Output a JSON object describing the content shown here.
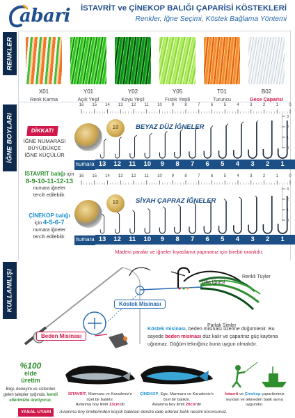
{
  "brand": {
    "logo_text": "abari"
  },
  "header": {
    "title": "İSTAVRİT ve ÇİNEKOP BALIĞI ÇAPARİSİ KÖSTEKLERİ",
    "subtitle": "Renkler, İğne Seçimi, Köstek Bağlama Yöntemi"
  },
  "sections": {
    "colors": "RENKLER",
    "hooks": "İĞNE BOYLARI",
    "usage": "KULLANILIŞI"
  },
  "colors": [
    {
      "code": "X01",
      "name": "Renk Karma",
      "highlight": false
    },
    {
      "code": "Y01",
      "name": "Açık Yeşil",
      "highlight": false
    },
    {
      "code": "Y02",
      "name": "Koyu Yeşil",
      "highlight": false
    },
    {
      "code": "Y05",
      "name": "Fıstık Yeşili",
      "highlight": false
    },
    {
      "code": "T01",
      "name": "Turuncu",
      "highlight": false
    },
    {
      "code": "B02",
      "name": "Gece Çaparisi",
      "highlight": true
    }
  ],
  "hooks": {
    "ruler_top": [
      "16",
      "15",
      "14",
      "13",
      "12",
      "11",
      "10",
      "9",
      "8",
      "7",
      "6",
      "5",
      "4",
      "3",
      "2",
      "1",
      "0"
    ],
    "ruler_bottom": [
      "16",
      "15",
      "14",
      "13",
      "12",
      "11",
      "10",
      "9",
      "8",
      "7",
      "6",
      "5",
      "4",
      "3",
      "2",
      "1",
      "0"
    ],
    "side_scale": [
      "3",
      "2",
      "1",
      "0"
    ],
    "white_title": "BEYAZ DÜZ İĞNELER",
    "silver_title": "SİYAH ÇAPRAZ İĞNELER",
    "number_label": "numara",
    "numbers_top": [
      "13",
      "12",
      "11",
      "10",
      "9",
      "8",
      "7",
      "6",
      "5",
      "4",
      "3",
      "2",
      "1"
    ],
    "numbers_bottom": [
      "13",
      "12",
      "11",
      "10",
      "9",
      "8",
      "7",
      "6",
      "5",
      "4",
      "3",
      "2",
      "1"
    ],
    "dikkat": "DİKKAT!",
    "warning_l1": "İĞNE NUMARASI",
    "warning_l2": "BÜYÜDÜKÇE",
    "warning_l3": "İĞNE KÜÇÜLÜR",
    "istavrit_l1a": "İSTAVRİT balığı",
    "istavrit_l1b": " için",
    "istavrit_nums": "8-9-10-11-12-13",
    "istavrit_l3": "numara iğneler",
    "istavrit_l4": "tercih edilebilir.",
    "cinekop_l1a": "ÇİNEKOP balığı",
    "cinekop_l2a": "için ",
    "cinekop_nums": "4-5-6-7",
    "cinekop_l3": "numara iğneler",
    "cinekop_l4": "tercih edilebilir.",
    "coin_label": "10",
    "footnote": "Madeni paralar ve iğneler kıyaslama yapmanız için birebir oranlıdır."
  },
  "usage": {
    "hook_label": "Olta İğnesi",
    "feather_label": "Renkli Tüyler",
    "beads_label": "Parlak Simler",
    "kostek_label": "Köstek Misinası",
    "beden_label": "Beden Misinası",
    "desc_a": "Köstek misinası",
    "desc_b": ", beden misinası üzerine düğümlenir. Bu",
    "desc_c": "sayede ",
    "desc_d": "beden misinası",
    "desc_e": " düz kalır ve çapariniz güç kaybına",
    "desc_f": "uğramaz. Düğüm tekniğiniz buna uygun olmalıdır."
  },
  "footer": {
    "made_pct": "%100",
    "made_l2": "elde",
    "made_l3": "üretim",
    "made_desc_1": "Bilgi, deneyim ve sizlerden",
    "made_desc_2": "gelen talepler ışığında, ",
    "made_desc_2b": "kendi",
    "made_desc_3": "elleri­mizle üretiyoruz.",
    "istavrit_name": "İSTAVRİT",
    "istavrit_desc_1": ", Marmara ve Karadeniz'e",
    "istavrit_desc_2": "özel bir balıktır.",
    "istavrit_desc_3a": "Avlanma boy limiti ",
    "istavrit_limit": "13cm",
    "istavrit_desc_3b": "'dir",
    "cinekop_name": "ÇİNEKOP",
    "cinekop_desc_1": ", Ege, Marmara ve Karadeniz'e",
    "cinekop_desc_2": "özel bir balıktır.",
    "cinekop_desc_3a": "Avlanma boy limiti ",
    "cinekop_limit": "20cm",
    "cinekop_desc_3b": "'dir",
    "shore_a": "İstavrit",
    "shore_b": " ve ",
    "shore_c": "Çinekop",
    "shore_d": " çapariler­imiz",
    "shore_2": "kıyıdan ve tekneden balık avına",
    "shore_3": "uygundur.",
    "legal_tag": "YASAL UYARI",
    "legal_text": ": Avlanma boy limitlerinden küçük balıkları denize iade ederek balık neslini korursunuz."
  },
  "palette": {
    "brand_blue": "#1f4f8c",
    "accent_red": "#d0184b",
    "dark_navy": "#0d2a4d",
    "green": "#2f8f2f"
  }
}
